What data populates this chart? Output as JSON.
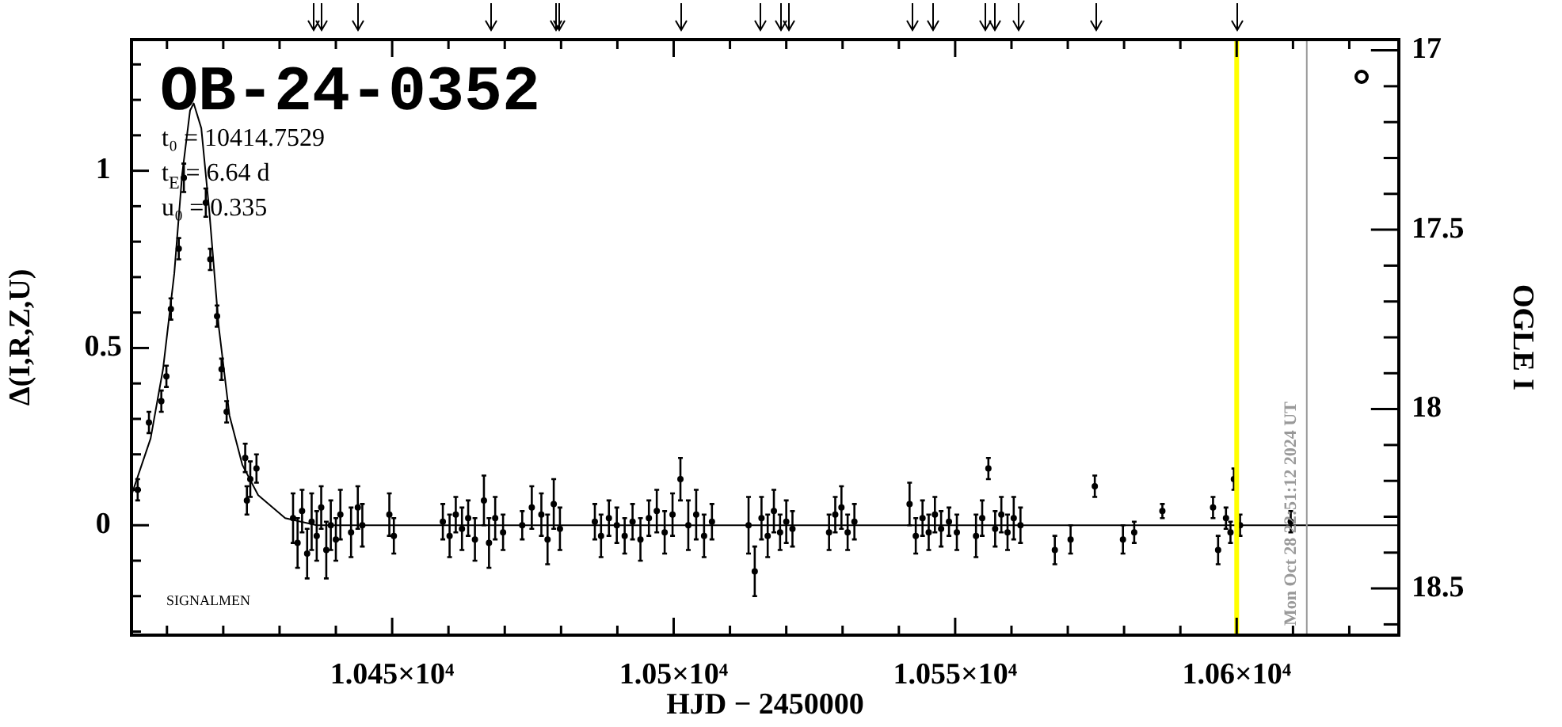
{
  "chart_data": {
    "type": "scatter",
    "title": "OB-24-0352",
    "xlabel": "HJD − 2450000",
    "ylabel": "Δ(I,R,Z,U)",
    "y2label": "OGLE I",
    "annotations": [
      "t₀ = 10414.7529",
      "t$_{E}$ = 6.64 d",
      "u₀ = 0.335",
      "SIGNALMEN",
      "Mon Oct 28 22:51:12 2024 UT"
    ],
    "xlim": [
      10403.7,
      10628.8
    ],
    "xticks": [
      {
        "value": 10410,
        "label": null
      },
      {
        "value": 10420,
        "label": null
      },
      {
        "value": 10430,
        "label": null
      },
      {
        "value": 10440,
        "label": null
      },
      {
        "value": 10450,
        "label": "1.045×10⁴"
      },
      {
        "value": 10460,
        "label": null
      },
      {
        "value": 10470,
        "label": null
      },
      {
        "value": 10480,
        "label": null
      },
      {
        "value": 10490,
        "label": null
      },
      {
        "value": 10500,
        "label": "1.05×10⁴"
      },
      {
        "value": 10510,
        "label": null
      },
      {
        "value": 10520,
        "label": null
      },
      {
        "value": 10530,
        "label": null
      },
      {
        "value": 10540,
        "label": null
      },
      {
        "value": 10550,
        "label": "1.055×10⁴"
      },
      {
        "value": 10560,
        "label": null
      },
      {
        "value": 10570,
        "label": null
      },
      {
        "value": 10580,
        "label": null
      },
      {
        "value": 10590,
        "label": null
      },
      {
        "value": 10600,
        "label": "1.06×10⁴"
      },
      {
        "value": 10610,
        "label": null
      },
      {
        "value": 10620,
        "label": null
      }
    ],
    "ylim": [
      -0.31,
      1.37
    ],
    "yticks": [
      {
        "value": -0.3,
        "label": null
      },
      {
        "value": -0.2,
        "label": null
      },
      {
        "value": -0.1,
        "label": null
      },
      0,
      {
        "value": 0.1,
        "label": null
      },
      {
        "value": 0.2,
        "label": null
      },
      {
        "value": 0.3,
        "label": null
      },
      {
        "value": 0.4,
        "label": null
      },
      0.5,
      {
        "value": 0.6,
        "label": null
      },
      {
        "value": 0.7,
        "label": null
      },
      {
        "value": 0.8,
        "label": null
      },
      {
        "value": 0.9,
        "label": null
      },
      1,
      {
        "value": 1.1,
        "label": null
      },
      {
        "value": 1.2,
        "label": null
      },
      {
        "value": 1.3,
        "label": null
      }
    ],
    "y2lim": [
      18.63,
      16.97
    ],
    "y2ticks": [
      17,
      {
        "value": 17.1,
        "label": null
      },
      {
        "value": 17.2,
        "label": null
      },
      {
        "value": 17.3,
        "label": null
      },
      {
        "value": 17.4,
        "label": null
      },
      17.5,
      {
        "value": 17.6,
        "label": null
      },
      {
        "value": 17.7,
        "label": null
      },
      {
        "value": 17.8,
        "label": null
      },
      {
        "value": 17.9,
        "label": null
      },
      18,
      {
        "value": 18.1,
        "label": null
      },
      {
        "value": 18.2,
        "label": null
      },
      {
        "value": 18.3,
        "label": null
      },
      {
        "value": 18.4,
        "label": null
      },
      18.5,
      {
        "value": 18.6,
        "label": null
      }
    ],
    "ref_lines": [
      {
        "axis": "x",
        "value": 10600,
        "color": "#ffff00"
      },
      {
        "axis": "x",
        "value": 10612.45,
        "color": "#999999"
      }
    ],
    "series": [
      {
        "type": "line",
        "color": "#000000",
        "marker": "none",
        "x": [
          10403.7,
          10407.1,
          10409.3,
          10411.3,
          10412.7,
          10414.1,
          10414.75,
          10416.1,
          10417.5,
          10419.2,
          10421.1,
          10423.4,
          10426.2,
          10431.0,
          10436.6,
          10628.8
        ],
        "values": [
          0.085,
          0.245,
          0.44,
          0.71,
          0.99,
          1.17,
          1.19,
          1.12,
          0.89,
          0.56,
          0.31,
          0.17,
          0.085,
          0.02,
          0.0,
          0.0
        ]
      },
      {
        "color": "#000000",
        "marker": "circle",
        "x": [
          10404.8,
          10406.8,
          10409.0,
          10409.9,
          10410.7,
          10412.1,
          10413.0,
          10416.9,
          10417.7,
          10418.9,
          10419.7,
          10420.6,
          10423.9,
          10424.2,
          10424.8,
          10425.9,
          10432.4,
          10433.2,
          10434.0,
          10434.9,
          10435.7,
          10436.6,
          10437.4,
          10438.3,
          10439.1,
          10440.0,
          10440.8,
          10442.7,
          10443.9,
          10444.7,
          10449.5,
          10450.3,
          10459.0,
          10460.2,
          10461.3,
          10462.4,
          10463.5,
          10464.7,
          10466.3,
          10467.2,
          10468.3,
          10469.7,
          10473.1,
          10474.8,
          10476.5,
          10477.6,
          10478.7,
          10479.8,
          10486.0,
          10487.1,
          10488.5,
          10489.9,
          10491.3,
          10492.7,
          10494.1,
          10495.6,
          10497.0,
          10498.4,
          10499.8,
          10501.2,
          10502.6,
          10504.0,
          10505.4,
          10506.8,
          10513.3,
          10514.4,
          10515.6,
          10516.7,
          10517.8,
          10518.9,
          10520.0,
          10521.1,
          10527.6,
          10528.7,
          10529.8,
          10530.9,
          10532.1,
          10541.9,
          10543.0,
          10544.2,
          10545.3,
          10546.4,
          10547.5,
          10548.9,
          10550.3,
          10553.7,
          10554.8,
          10555.9,
          10557.1,
          10558.2,
          10559.3,
          10560.4,
          10561.6,
          10567.7,
          10570.5,
          10574.8,
          10579.8,
          10581.8,
          10586.8,
          10595.8,
          10596.7,
          10598.1,
          10598.9,
          10599.5,
          10600.6,
          10609.6
        ],
        "values": [
          0.1,
          0.29,
          0.35,
          0.42,
          0.61,
          0.78,
          0.98,
          0.91,
          0.75,
          0.59,
          0.44,
          0.32,
          0.19,
          0.07,
          0.13,
          0.16,
          0.02,
          -0.05,
          0.04,
          -0.08,
          0.01,
          -0.03,
          0.05,
          -0.07,
          0.0,
          -0.04,
          0.03,
          -0.02,
          0.05,
          0.0,
          0.03,
          -0.03,
          0.01,
          -0.03,
          0.03,
          -0.01,
          0.02,
          -0.04,
          0.07,
          -0.05,
          0.02,
          -0.02,
          0.0,
          0.05,
          0.03,
          -0.04,
          0.06,
          -0.01,
          0.01,
          -0.03,
          0.02,
          0.0,
          -0.03,
          0.01,
          -0.04,
          0.02,
          0.04,
          -0.02,
          0.03,
          0.13,
          0.0,
          0.03,
          -0.03,
          0.01,
          0.0,
          -0.13,
          0.02,
          -0.03,
          0.04,
          -0.02,
          0.01,
          -0.01,
          -0.02,
          0.03,
          0.05,
          -0.02,
          0.01,
          0.06,
          -0.03,
          0.02,
          -0.02,
          0.03,
          -0.01,
          0.01,
          -0.02,
          -0.03,
          0.02,
          0.16,
          -0.01,
          0.03,
          -0.02,
          0.02,
          0.0,
          -0.07,
          -0.04,
          0.11,
          -0.04,
          -0.02,
          0.04,
          0.05,
          -0.07,
          0.02,
          -0.02,
          0.13,
          0.0,
          0.01
        ],
        "errors": [
          0.03,
          0.03,
          0.03,
          0.03,
          0.03,
          0.03,
          0.04,
          0.04,
          0.03,
          0.03,
          0.03,
          0.03,
          0.04,
          0.04,
          0.05,
          0.04,
          0.07,
          0.07,
          0.06,
          0.07,
          0.08,
          0.07,
          0.06,
          0.08,
          0.07,
          0.06,
          0.07,
          0.07,
          0.06,
          0.06,
          0.06,
          0.05,
          0.05,
          0.06,
          0.05,
          0.06,
          0.05,
          0.06,
          0.07,
          0.07,
          0.06,
          0.05,
          0.04,
          0.06,
          0.06,
          0.07,
          0.07,
          0.06,
          0.05,
          0.06,
          0.05,
          0.05,
          0.05,
          0.05,
          0.06,
          0.05,
          0.06,
          0.06,
          0.06,
          0.06,
          0.07,
          0.07,
          0.06,
          0.05,
          0.08,
          0.07,
          0.06,
          0.06,
          0.06,
          0.05,
          0.06,
          0.05,
          0.05,
          0.05,
          0.06,
          0.05,
          0.05,
          0.06,
          0.05,
          0.05,
          0.05,
          0.05,
          0.05,
          0.04,
          0.05,
          0.06,
          0.05,
          0.03,
          0.05,
          0.05,
          0.05,
          0.06,
          0.05,
          0.04,
          0.04,
          0.03,
          0.04,
          0.03,
          0.02,
          0.03,
          0.04,
          0.03,
          0.03,
          0.03,
          0.03,
          0.03
        ]
      }
    ]
  }
}
